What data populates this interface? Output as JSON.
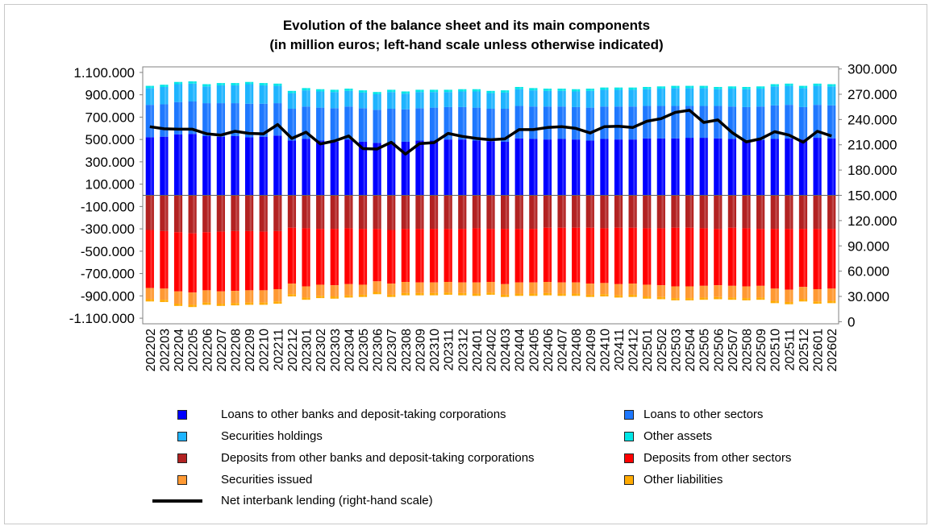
{
  "chart_data": {
    "type": "bar",
    "title": "Evolution of the balance sheet and its main components",
    "subtitle": "(in million euros; left-hand scale unless otherwise indicated)",
    "categories": [
      "202202",
      "202203",
      "202204",
      "202205",
      "202206",
      "202207",
      "202208",
      "202209",
      "202210",
      "202211",
      "202212",
      "202301",
      "202302",
      "202303",
      "202304",
      "202305",
      "202306",
      "202307",
      "202308",
      "202309",
      "202310",
      "202311",
      "202312",
      "202401",
      "202402",
      "202403",
      "202404",
      "202405",
      "202406",
      "202407",
      "202408",
      "202409",
      "202410",
      "202411",
      "202412",
      "202501",
      "202502",
      "202503",
      "202504",
      "202505",
      "202506",
      "202507",
      "202508",
      "202509",
      "202510",
      "202511",
      "202512",
      "202601",
      "202602"
    ],
    "left_axis": {
      "ylim": [
        -1150000,
        1150000
      ],
      "tick_values": [
        1100000,
        900000,
        700000,
        500000,
        300000,
        100000,
        -100000,
        -300000,
        -500000,
        -700000,
        -900000,
        -1100000
      ],
      "tick_labels": [
        "1.100.000",
        "900.000",
        "700.000",
        "500.000",
        "300.000",
        "100.000",
        "-100.000",
        "-300.000",
        "-500.000",
        "-700.000",
        "-900.000",
        "-1.100.000"
      ]
    },
    "right_axis": {
      "ylim": [
        -2500,
        302500
      ],
      "tick_values": [
        300000,
        270000,
        240000,
        210000,
        180000,
        150000,
        120000,
        90000,
        60000,
        30000,
        0
      ],
      "tick_labels": [
        "300.000",
        "270.000",
        "240.000",
        "210.000",
        "180.000",
        "150.000",
        "120.000",
        "90.000",
        "60.000",
        "30.000",
        "0"
      ]
    },
    "series": [
      {
        "name": "Loans to other banks and deposit-taking corporations",
        "color": "#0000ff",
        "stack": "assets",
        "values": [
          520000,
          525000,
          545000,
          550000,
          530000,
          525000,
          530000,
          520000,
          525000,
          535000,
          490000,
          505000,
          490000,
          480000,
          500000,
          480000,
          470000,
          475000,
          480000,
          490000,
          490000,
          500000,
          500000,
          490000,
          485000,
          480000,
          510000,
          505000,
          500000,
          505000,
          500000,
          490000,
          505000,
          500000,
          500000,
          510000,
          510000,
          510000,
          515000,
          515000,
          510000,
          505000,
          495000,
          495000,
          505000,
          510000,
          500000,
          515000,
          510000
        ]
      },
      {
        "name": "Loans to other sectors",
        "color": "#1e78ff",
        "stack": "assets",
        "values": [
          290000,
          290000,
          290000,
          290000,
          295000,
          300000,
          295000,
          300000,
          295000,
          290000,
          285000,
          290000,
          295000,
          300000,
          295000,
          300000,
          295000,
          300000,
          290000,
          290000,
          295000,
          290000,
          290000,
          295000,
          290000,
          295000,
          290000,
          290000,
          295000,
          290000,
          290000,
          295000,
          290000,
          295000,
          295000,
          290000,
          290000,
          290000,
          285000,
          285000,
          290000,
          290000,
          295000,
          300000,
          300000,
          300000,
          290000,
          295000,
          295000
        ]
      },
      {
        "name": "Securities holdings",
        "color": "#1eb4ff",
        "stack": "assets",
        "values": [
          150000,
          155000,
          160000,
          160000,
          150000,
          160000,
          160000,
          175000,
          165000,
          155000,
          140000,
          145000,
          145000,
          145000,
          140000,
          140000,
          140000,
          150000,
          140000,
          145000,
          140000,
          135000,
          140000,
          145000,
          140000,
          145000,
          150000,
          145000,
          140000,
          140000,
          140000,
          150000,
          150000,
          150000,
          150000,
          150000,
          155000,
          160000,
          160000,
          160000,
          150000,
          160000,
          160000,
          160000,
          170000,
          170000,
          170000,
          170000,
          170000
        ]
      },
      {
        "name": "Other assets",
        "color": "#00e6e6",
        "stack": "assets",
        "values": [
          20000,
          20000,
          20000,
          20000,
          20000,
          20000,
          20000,
          20000,
          20000,
          20000,
          20000,
          20000,
          20000,
          20000,
          20000,
          20000,
          20000,
          20000,
          20000,
          20000,
          20000,
          20000,
          20000,
          20000,
          20000,
          20000,
          20000,
          20000,
          20000,
          20000,
          20000,
          20000,
          20000,
          20000,
          20000,
          20000,
          20000,
          20000,
          20000,
          20000,
          20000,
          20000,
          20000,
          20000,
          20000,
          20000,
          20000,
          20000,
          20000
        ]
      },
      {
        "name": "Deposits from other banks and deposit-taking corporations",
        "color": "#b22222",
        "stack": "liabilities",
        "values": [
          -310000,
          -320000,
          -330000,
          -340000,
          -330000,
          -325000,
          -320000,
          -320000,
          -325000,
          -320000,
          -290000,
          -295000,
          -300000,
          -300000,
          -295000,
          -300000,
          -300000,
          -310000,
          -300000,
          -300000,
          -300000,
          -300000,
          -300000,
          -295000,
          -300000,
          -300000,
          -300000,
          -300000,
          -290000,
          -290000,
          -290000,
          -290000,
          -295000,
          -290000,
          -290000,
          -295000,
          -295000,
          -290000,
          -290000,
          -295000,
          -300000,
          -290000,
          -295000,
          -300000,
          -300000,
          -300000,
          -300000,
          -300000,
          -300000
        ]
      },
      {
        "name": "Deposits from other sectors",
        "color": "#ff0000",
        "stack": "liabilities",
        "values": [
          -520000,
          -515000,
          -530000,
          -530000,
          -520000,
          -535000,
          -535000,
          -530000,
          -525000,
          -520000,
          -500000,
          -520000,
          -500000,
          -505000,
          -500000,
          -500000,
          -470000,
          -480000,
          -475000,
          -480000,
          -480000,
          -475000,
          -480000,
          -485000,
          -475000,
          -495000,
          -480000,
          -480000,
          -485000,
          -490000,
          -490000,
          -500000,
          -490000,
          -505000,
          -500000,
          -505000,
          -510000,
          -525000,
          -525000,
          -515000,
          -505000,
          -520000,
          -520000,
          -510000,
          -535000,
          -545000,
          -520000,
          -540000,
          -535000
        ]
      },
      {
        "name": "Securities issued",
        "color": "#ff9933",
        "stack": "liabilities",
        "values": [
          -100000,
          -100000,
          -110000,
          -110000,
          -110000,
          -110000,
          -110000,
          -110000,
          -110000,
          -110000,
          -95000,
          -100000,
          -100000,
          -100000,
          -100000,
          -90000,
          -95000,
          -100000,
          -100000,
          -95000,
          -95000,
          -95000,
          -95000,
          -100000,
          -95000,
          -95000,
          -100000,
          -100000,
          -100000,
          -100000,
          -100000,
          -100000,
          -100000,
          -100000,
          -100000,
          -105000,
          -105000,
          -105000,
          -105000,
          -105000,
          -105000,
          -105000,
          -105000,
          -105000,
          -110000,
          -110000,
          -110000,
          -110000,
          -110000
        ]
      },
      {
        "name": "Other liabilities",
        "color": "#ffaa00",
        "stack": "liabilities",
        "values": [
          -20000,
          -20000,
          -20000,
          -20000,
          -20000,
          -20000,
          -20000,
          -20000,
          -20000,
          -20000,
          -20000,
          -20000,
          -20000,
          -20000,
          -20000,
          -20000,
          -20000,
          -20000,
          -20000,
          -20000,
          -20000,
          -20000,
          -20000,
          -20000,
          -20000,
          -20000,
          -20000,
          -20000,
          -20000,
          -20000,
          -20000,
          -20000,
          -20000,
          -20000,
          -20000,
          -20000,
          -20000,
          -20000,
          -20000,
          -20000,
          -20000,
          -20000,
          -20000,
          -20000,
          -20000,
          -20000,
          -20000,
          -20000,
          -20000
        ]
      },
      {
        "name": "Net interbank lending (right-hand scale)",
        "color": "#000000",
        "type": "line",
        "axis": "right",
        "values": [
          231500,
          229000,
          228500,
          228500,
          223000,
          221500,
          226000,
          223500,
          223000,
          234000,
          217500,
          225000,
          211000,
          214500,
          220500,
          205500,
          205000,
          213000,
          199000,
          211500,
          212500,
          223500,
          220000,
          217500,
          216000,
          217000,
          228000,
          228000,
          230500,
          231500,
          229500,
          224000,
          231500,
          232000,
          230500,
          238000,
          241000,
          248500,
          251000,
          236500,
          239500,
          224500,
          213500,
          217000,
          225500,
          221500,
          213000,
          226000,
          220500
        ]
      }
    ]
  }
}
